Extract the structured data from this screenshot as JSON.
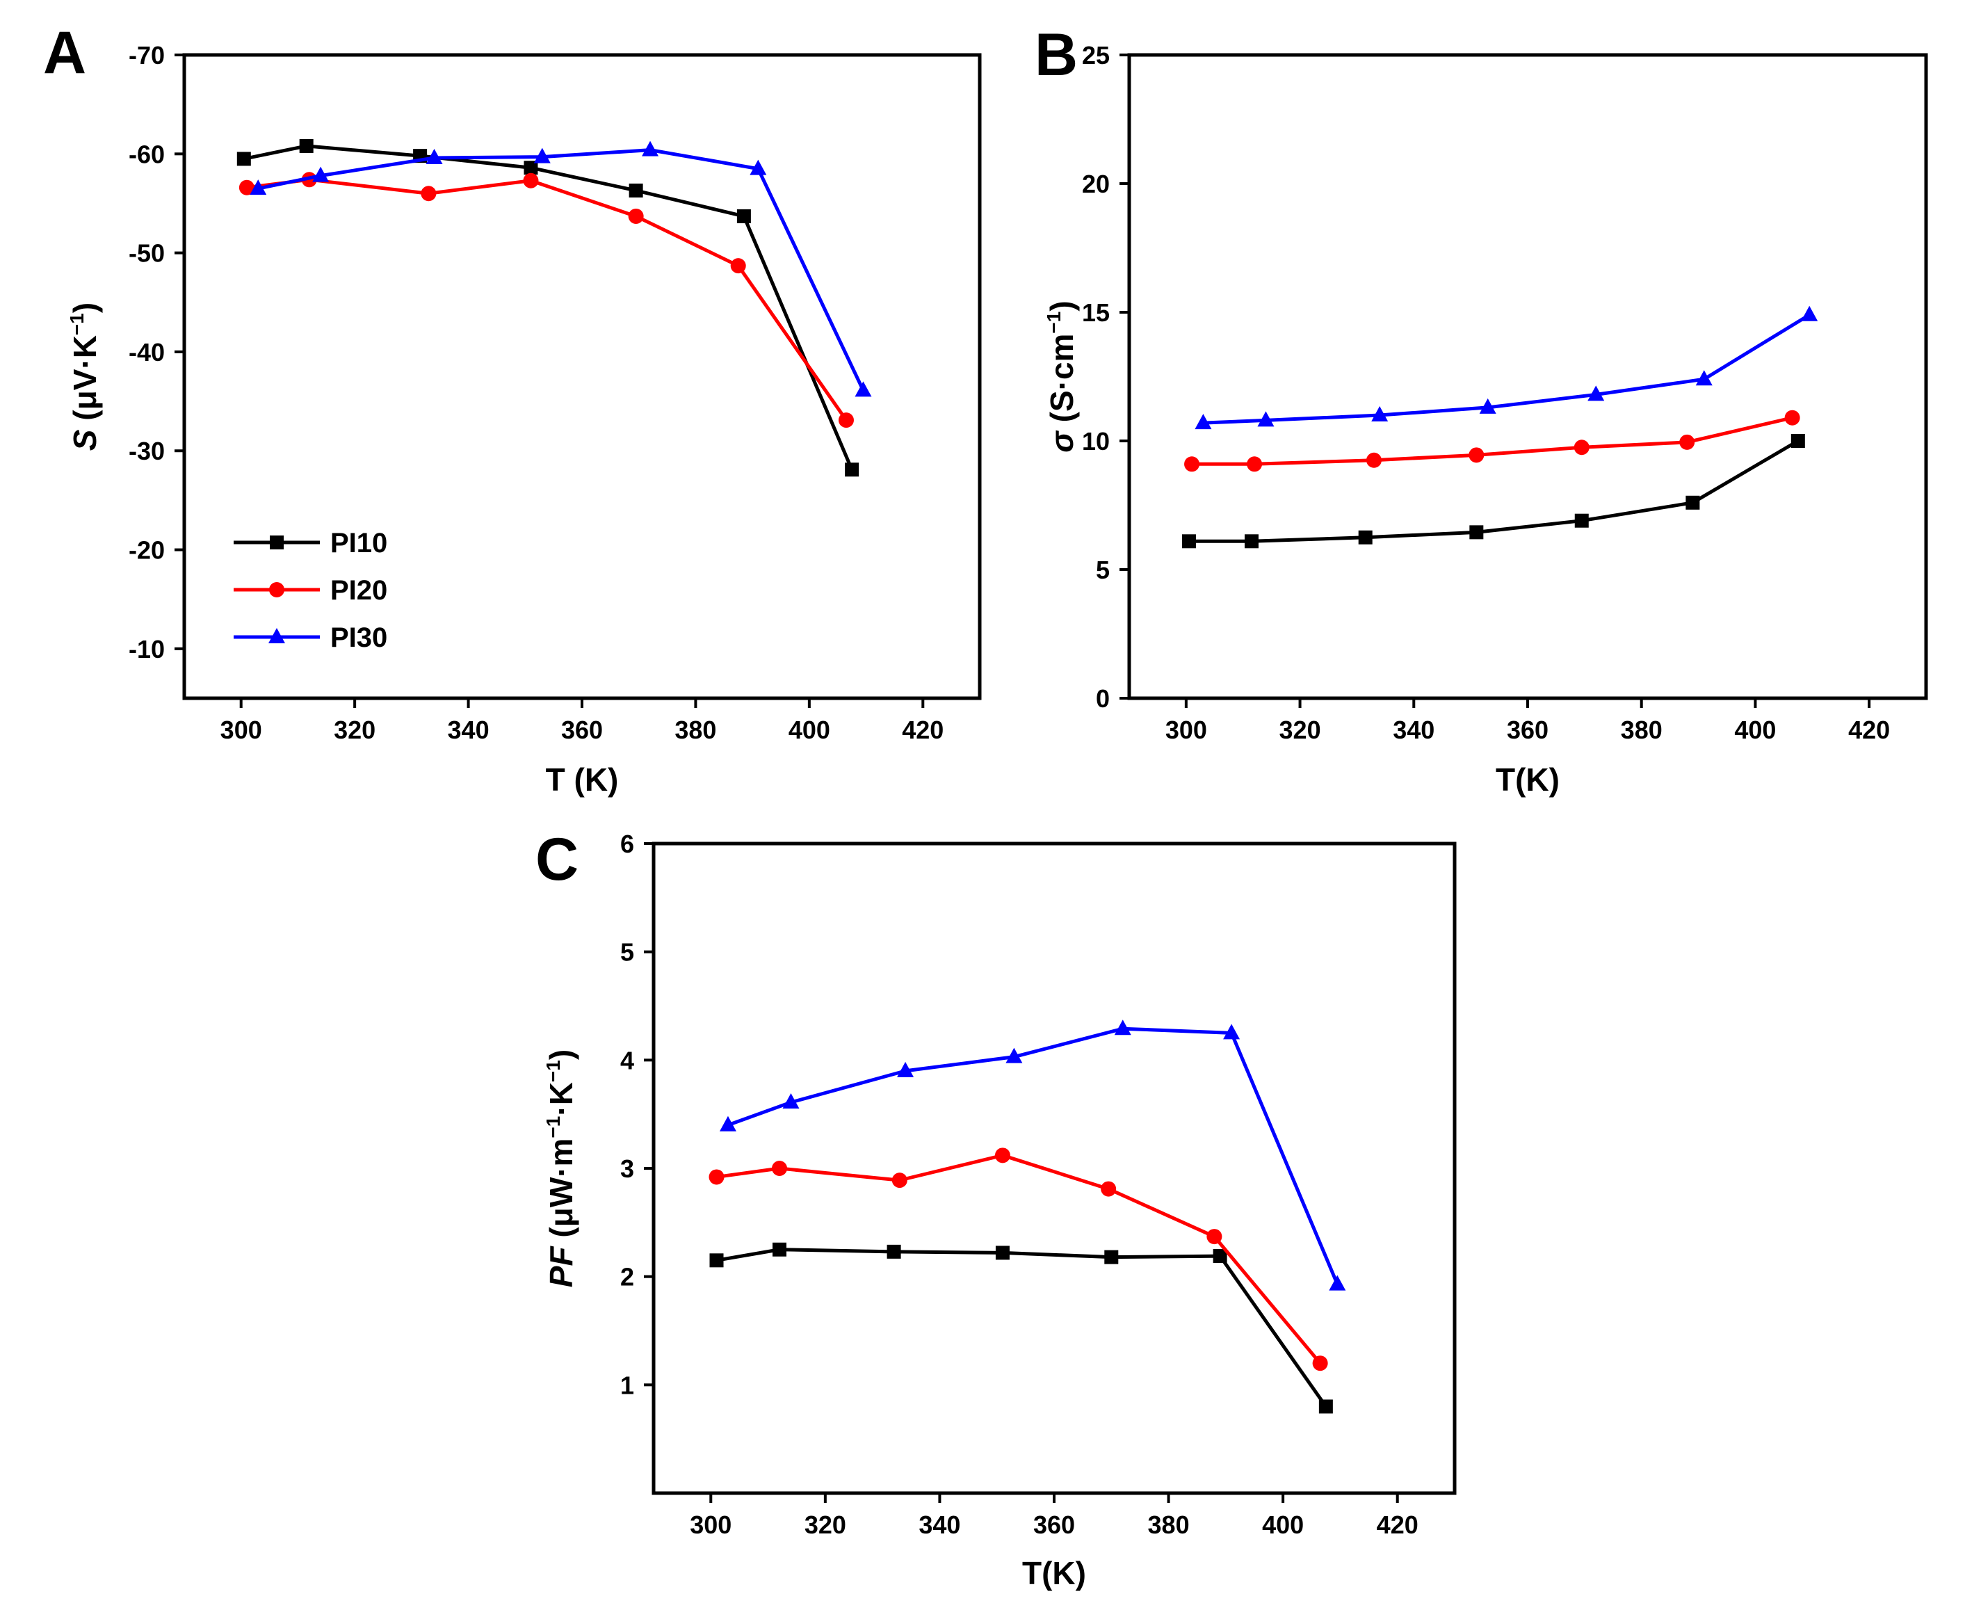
{
  "colors": {
    "PI10": "#000000",
    "PI20": "#ff0000",
    "PI30": "#0000ff"
  },
  "legend": [
    {
      "name": "PI10",
      "marker": "square"
    },
    {
      "name": "PI20",
      "marker": "circle"
    },
    {
      "name": "PI30",
      "marker": "triangle"
    }
  ],
  "chart_data": [
    {
      "id": "A",
      "type": "line",
      "panel_label": "A",
      "xlabel": "T (K)",
      "ylabel_main": "S",
      "ylabel_unit": " (μV·K",
      "ylabel_sup": "−1",
      "ylabel_close": ")",
      "xlim": [
        290,
        430
      ],
      "ylim": [
        -5,
        -70
      ],
      "xticks": [
        300,
        320,
        340,
        360,
        380,
        400,
        420
      ],
      "xticklabels": [
        "300",
        "320",
        "340",
        "360",
        "380",
        "400",
        "420"
      ],
      "yticks": [
        -10,
        -20,
        -30,
        -40,
        -50,
        -60,
        -70
      ],
      "yticklabels": [
        "-10",
        "-20",
        "-30",
        "-40",
        "-50",
        "-60",
        "-70"
      ],
      "legend_position": "lower-left",
      "series": [
        {
          "name": "PI10",
          "x": [
            300.5,
            311.5,
            331.5,
            351,
            369.5,
            388.5,
            407.5
          ],
          "y": [
            -59.5,
            -60.8,
            -59.8,
            -58.6,
            -56.3,
            -53.7,
            -28.1
          ]
        },
        {
          "name": "PI20",
          "x": [
            301,
            312,
            333,
            351,
            369.5,
            387.5,
            406.5
          ],
          "y": [
            -56.6,
            -57.4,
            -56.0,
            -57.3,
            -53.7,
            -48.7,
            -33.1
          ]
        },
        {
          "name": "PI30",
          "x": [
            303,
            314,
            334,
            353,
            372,
            391,
            409.5
          ],
          "y": [
            -56.5,
            -57.8,
            -59.6,
            -59.7,
            -60.4,
            -58.5,
            -36.1
          ]
        }
      ]
    },
    {
      "id": "B",
      "type": "line",
      "panel_label": "B",
      "xlabel": "T(K)",
      "ylabel_main": "σ",
      "ylabel_unit": " (S·cm",
      "ylabel_sup": "−1",
      "ylabel_close": ")",
      "xlim": [
        290,
        430
      ],
      "ylim": [
        0,
        25
      ],
      "xticks": [
        300,
        320,
        340,
        360,
        380,
        400,
        420
      ],
      "xticklabels": [
        "300",
        "320",
        "340",
        "360",
        "380",
        "400",
        "420"
      ],
      "yticks": [
        0,
        5,
        10,
        15,
        20,
        25
      ],
      "yticklabels": [
        "0",
        "5",
        "10",
        "15",
        "20",
        "25"
      ],
      "series": [
        {
          "name": "PI10",
          "x": [
            300.5,
            311.5,
            331.5,
            351,
            369.5,
            389,
            407.5
          ],
          "y": [
            6.1,
            6.1,
            6.25,
            6.45,
            6.9,
            7.6,
            10.0
          ]
        },
        {
          "name": "PI20",
          "x": [
            301,
            312,
            333,
            351,
            369.5,
            388,
            406.5
          ],
          "y": [
            9.1,
            9.1,
            9.25,
            9.45,
            9.75,
            9.95,
            10.9
          ]
        },
        {
          "name": "PI30",
          "x": [
            303,
            314,
            334,
            353,
            372,
            391,
            409.5
          ],
          "y": [
            10.7,
            10.8,
            11.0,
            11.3,
            11.8,
            12.4,
            14.9
          ]
        }
      ]
    },
    {
      "id": "C",
      "type": "line",
      "panel_label": "C",
      "xlabel": "T(K)",
      "ylabel_main": "PF",
      "ylabel_unit": " (μW·m",
      "ylabel_sup": "−1",
      "ylabel_mid": "·K",
      "ylabel_sup2": "−1",
      "ylabel_close": ")",
      "xlim": [
        290,
        430
      ],
      "ylim": [
        0,
        6
      ],
      "xticks": [
        300,
        320,
        340,
        360,
        380,
        400,
        420
      ],
      "xticklabels": [
        "300",
        "320",
        "340",
        "360",
        "380",
        "400",
        "420"
      ],
      "yticks": [
        1,
        2,
        3,
        4,
        5,
        6
      ],
      "yticklabels": [
        "1",
        "2",
        "3",
        "4",
        "5",
        "6"
      ],
      "series": [
        {
          "name": "PI10",
          "x": [
            301,
            312,
            332,
            351,
            370,
            389,
            407.5
          ],
          "y": [
            2.15,
            2.25,
            2.23,
            2.22,
            2.18,
            2.19,
            0.8
          ]
        },
        {
          "name": "PI20",
          "x": [
            301,
            312,
            333,
            351,
            369.5,
            388,
            406.5
          ],
          "y": [
            2.92,
            3.0,
            2.89,
            3.12,
            2.81,
            2.37,
            1.2
          ]
        },
        {
          "name": "PI30",
          "x": [
            303,
            314,
            334,
            353,
            372,
            391,
            409.5
          ],
          "y": [
            3.4,
            3.61,
            3.9,
            4.03,
            4.29,
            4.25,
            1.93
          ]
        }
      ]
    }
  ]
}
